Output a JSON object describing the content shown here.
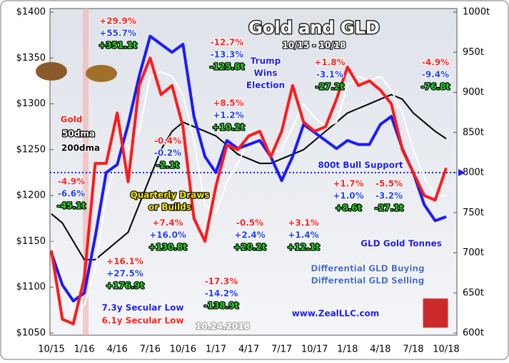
{
  "chart_data": {
    "type": "line",
    "title": "Gold and GLD",
    "subtitle": "10/15 - 10/18",
    "categories": [
      "10/15",
      null,
      null,
      "1/16",
      null,
      null,
      "4/16",
      null,
      null,
      "7/16",
      null,
      null,
      "10/16",
      null,
      null,
      "1/17",
      null,
      null,
      "4/17",
      null,
      null,
      "7/17",
      null,
      null,
      "10/17",
      null,
      null,
      "1/18",
      null,
      null,
      "4/18",
      null,
      null,
      "7/18",
      null,
      null,
      "10/18"
    ],
    "series": [
      {
        "name": "200dma",
        "color": "#000000",
        "values": [
          1180,
          1170,
          1150,
          1130,
          1130,
          1140,
          1150,
          1160,
          1190,
          1220,
          1250,
          1270,
          1280,
          1275,
          1270,
          1265,
          1255,
          1245,
          1240,
          1235,
          1235,
          1240,
          1245,
          1250,
          1260,
          1270,
          1280,
          1290,
          1295,
          1300,
          1305,
          1310,
          1305,
          1290,
          1280,
          1270,
          1262
        ]
      },
      {
        "name": "50dma",
        "color": "#ffffff",
        "values": [
          1150,
          1110,
          1075,
          1080,
          1120,
          1200,
          1240,
          1250,
          1270,
          1330,
          1335,
          1330,
          1310,
          1260,
          1190,
          1180,
          1215,
          1235,
          1260,
          1255,
          1245,
          1250,
          1275,
          1300,
          1285,
          1275,
          1280,
          1320,
          1330,
          1325,
          1330,
          1315,
          1290,
          1250,
          1220,
          1200,
          1200
        ]
      },
      {
        "name": "GLD Gold Tonnes",
        "color": "#1a1aff",
        "axis": "y2",
        "values": [
          700,
          660,
          640,
          650,
          720,
          800,
          810,
          860,
          920,
          970,
          960,
          950,
          960,
          870,
          820,
          800,
          840,
          830,
          835,
          840,
          820,
          790,
          820,
          860,
          850,
          840,
          830,
          840,
          835,
          835,
          860,
          870,
          830,
          800,
          760,
          740,
          745
        ]
      },
      {
        "name": "Gold",
        "color": "#ff1a1a",
        "values": [
          1140,
          1065,
          1060,
          1110,
          1235,
          1235,
          1290,
          1215,
          1320,
          1350,
          1310,
          1320,
          1275,
          1175,
          1150,
          1210,
          1255,
          1250,
          1265,
          1270,
          1242,
          1270,
          1320,
          1280,
          1270,
          1275,
          1305,
          1340,
          1320,
          1325,
          1315,
          1300,
          1250,
          1225,
          1200,
          1195,
          1230
        ]
      }
    ],
    "ylim": [
      1050,
      1400
    ],
    "yticks": [
      {
        "value": 1050,
        "label": "$1050"
      },
      {
        "value": 1100,
        "label": "$1100"
      },
      {
        "value": 1150,
        "label": "$1150"
      },
      {
        "value": 1200,
        "label": "$1200"
      },
      {
        "value": 1250,
        "label": "$1250"
      },
      {
        "value": 1300,
        "label": "$1300"
      },
      {
        "value": 1350,
        "label": "$1350"
      },
      {
        "value": 1400,
        "label": "$1400"
      }
    ],
    "y2lim": [
      600,
      1000
    ],
    "y2ticks": [
      {
        "value": 600,
        "label": "600t"
      },
      {
        "value": 650,
        "label": "650t"
      },
      {
        "value": 700,
        "label": "700t"
      },
      {
        "value": 750,
        "label": "750t"
      },
      {
        "value": 800,
        "label": "800t"
      },
      {
        "value": 850,
        "label": "850t"
      },
      {
        "value": 900,
        "label": "900t"
      },
      {
        "value": 950,
        "label": "950t"
      },
      {
        "value": 1000,
        "label": "1000t"
      }
    ],
    "support": {
      "value": 800,
      "label": "800t Bull Support"
    },
    "changes": [
      {
        "gold": "-4.9%",
        "gld": "-6.6%",
        "tonnes": "-45.1t"
      },
      {
        "gold": "+29.9%",
        "gld": "+55.7%",
        "tonnes": "+351.1t"
      },
      {
        "gold": "-0.4%",
        "gld": "-0.2%",
        "tonnes": "-2.1t"
      },
      {
        "gold": "+7.4%",
        "gld": "+16.0%",
        "tonnes": "+130.8t"
      },
      {
        "gold": "+16.1%",
        "gld": "+27.5%",
        "tonnes": "+176.9t"
      },
      {
        "gold": "-12.7%",
        "gld": "-13.3%",
        "tonnes": "-125.8t"
      },
      {
        "gold": "+8.5%",
        "gld": "+1.2%",
        "tonnes": "+10.2t"
      },
      {
        "gold": "-17.3%",
        "gld": "-14.2%",
        "tonnes": "-138.9t"
      },
      {
        "gold": "-0.5%",
        "gld": "+2.4%",
        "tonnes": "+20.2t"
      },
      {
        "gold": "+3.1%",
        "gld": "+1.4%",
        "tonnes": "+12.1t"
      },
      {
        "gold": "+1.8%",
        "gld": "-3.1%",
        "tonnes": "-27.2t"
      },
      {
        "gold": "+1.7%",
        "gld": "+1.0%",
        "tonnes": "+8.6t"
      },
      {
        "gold": "-5.5%",
        "gld": "-3.2%",
        "tonnes": "-27.1t"
      },
      {
        "gold": "-4.9%",
        "gld": "-9.4%",
        "tonnes": "-76.8t"
      }
    ],
    "notes": [
      "Trump",
      "Wins",
      "Election",
      "Quarterly Draws",
      "or Builds",
      "7.3y Secular Low",
      "6.1y Secular Low",
      "Differential GLD Buying",
      "Differential GLD Selling",
      "www.ZealLLC.com",
      "10.24.2018"
    ]
  }
}
